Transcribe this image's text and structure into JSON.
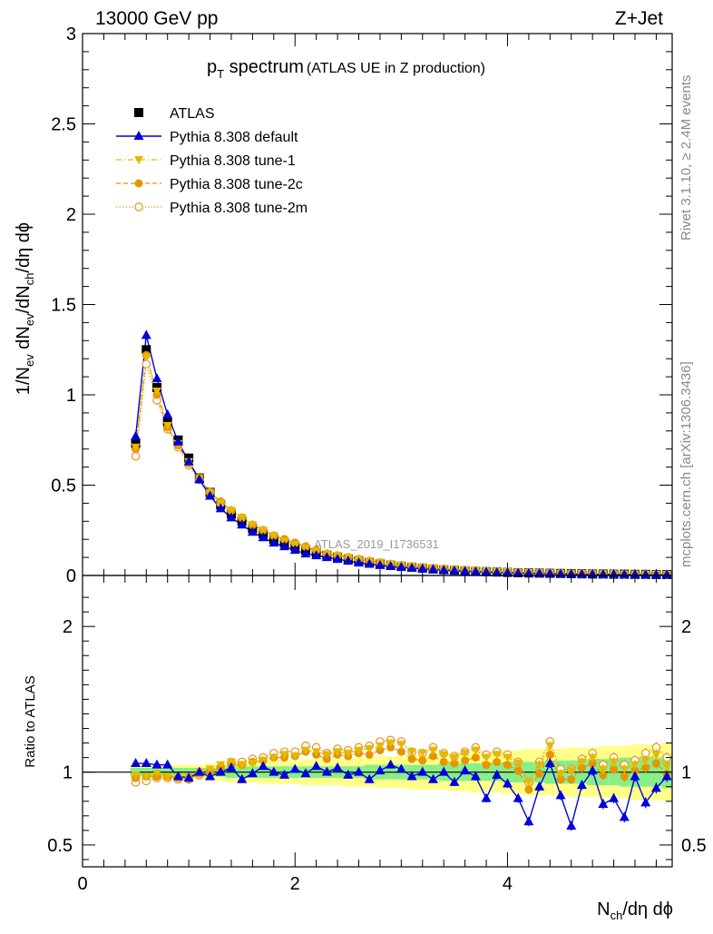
{
  "header": {
    "left": "13000 GeV pp",
    "right": "Z+Jet"
  },
  "plot_title": {
    "main_p": "p",
    "main_sub": "T",
    "main_rest": " spectrum",
    "paren": "(ATLAS UE in Z production)"
  },
  "sidebar": {
    "rivet": "Rivet 3.1.10, ≥ 2.4M events",
    "mcplots": "mcplots.cern.ch [arXiv:1306.3436]"
  },
  "watermark": "ATLAS_2019_I1736531",
  "colors": {
    "data": "#000000",
    "default": "#0000dd",
    "tune1": "#e6b800",
    "tune2c": "#e69500",
    "tune2m": "#e69b33",
    "band_yellow": "#ffff88",
    "band_green": "#88ee88"
  },
  "chart_data": [
    {
      "type": "scatter",
      "panel": "main",
      "ylabel": "1/N_ev dN_ev/dN_ch/dη dϕ",
      "ylabel_parts": {
        "a": "1/N",
        "a_sub": "ev",
        "b": " dN",
        "b_sub": "ev",
        "c": "/dN",
        "c_sub": "ch",
        "d": "/dη dϕ"
      },
      "ylim": [
        0,
        3
      ],
      "xlim": [
        0,
        5.55
      ],
      "yticks": [
        "0",
        "0.5",
        "1",
        "1.5",
        "2",
        "2.5",
        "3"
      ],
      "legend": [
        {
          "label": "ATLAS",
          "key": "data"
        },
        {
          "label": "Pythia 8.308 default",
          "key": "default"
        },
        {
          "label": "Pythia 8.308 tune-1",
          "key": "tune1"
        },
        {
          "label": "Pythia 8.308 tune-2c",
          "key": "tune2c"
        },
        {
          "label": "Pythia 8.308 tune-2m",
          "key": "tune2m"
        }
      ],
      "x": [
        0.5,
        0.6,
        0.7,
        0.8,
        0.9,
        1.0,
        1.1,
        1.2,
        1.3,
        1.4,
        1.5,
        1.6,
        1.7,
        1.8,
        1.9,
        2.0,
        2.1,
        2.2,
        2.3,
        2.4,
        2.5,
        2.6,
        2.7,
        2.8,
        2.9,
        3.0,
        3.1,
        3.2,
        3.3,
        3.4,
        3.5,
        3.6,
        3.7,
        3.8,
        3.9,
        4.0,
        4.1,
        4.2,
        4.3,
        4.4,
        4.5,
        4.6,
        4.7,
        4.8,
        4.9,
        5.0,
        5.1,
        5.2,
        5.3,
        5.4,
        5.5
      ],
      "series": [
        {
          "name": "ATLAS",
          "key": "data",
          "values": [
            0.73,
            1.25,
            1.04,
            0.85,
            0.75,
            0.65,
            0.54,
            0.46,
            0.39,
            0.34,
            0.3,
            0.26,
            0.23,
            0.2,
            0.18,
            0.16,
            0.14,
            0.125,
            0.11,
            0.1,
            0.09,
            0.08,
            0.072,
            0.064,
            0.057,
            0.051,
            0.046,
            0.041,
            0.036,
            0.032,
            0.029,
            0.026,
            0.023,
            0.021,
            0.019,
            0.017,
            0.015,
            0.014,
            0.013,
            0.012,
            0.011,
            0.01,
            0.009,
            0.008,
            0.008,
            0.007,
            0.007,
            0.006,
            0.006,
            0.005,
            0.005
          ]
        },
        {
          "name": "Pythia 8.308 default",
          "key": "default",
          "values": [
            0.77,
            1.33,
            1.09,
            0.89,
            0.74,
            0.63,
            0.53,
            0.44,
            0.37,
            0.32,
            0.28,
            0.24,
            0.21,
            0.18,
            0.16,
            0.14,
            0.12,
            0.11,
            0.1,
            0.09,
            0.08,
            0.07,
            0.063,
            0.056,
            0.05,
            0.045,
            0.041,
            0.037,
            0.033,
            0.029,
            0.026,
            0.023,
            0.021,
            0.018,
            0.016,
            0.015,
            0.013,
            0.012,
            0.011,
            0.01,
            0.009,
            0.008,
            0.007,
            0.007,
            0.006,
            0.006,
            0.005,
            0.005,
            0.004,
            0.004,
            0.004
          ]
        },
        {
          "name": "Pythia 8.308 tune-1",
          "key": "tune1",
          "values": [
            0.71,
            1.21,
            1.02,
            0.83,
            0.73,
            0.63,
            0.54,
            0.46,
            0.4,
            0.36,
            0.32,
            0.28,
            0.25,
            0.22,
            0.19,
            0.17,
            0.15,
            0.135,
            0.12,
            0.11,
            0.1,
            0.09,
            0.08,
            0.072,
            0.064,
            0.057,
            0.051,
            0.046,
            0.041,
            0.037,
            0.033,
            0.03,
            0.027,
            0.024,
            0.022,
            0.02,
            0.018,
            0.016,
            0.015,
            0.014,
            0.012,
            0.011,
            0.01,
            0.009,
            0.009,
            0.008,
            0.007,
            0.007,
            0.006,
            0.006,
            0.005
          ]
        },
        {
          "name": "Pythia 8.308 tune-2c",
          "key": "tune2c",
          "values": [
            0.7,
            1.22,
            1.0,
            0.82,
            0.72,
            0.62,
            0.54,
            0.46,
            0.41,
            0.36,
            0.32,
            0.28,
            0.25,
            0.22,
            0.2,
            0.18,
            0.16,
            0.14,
            0.12,
            0.11,
            0.1,
            0.09,
            0.08,
            0.071,
            0.063,
            0.056,
            0.05,
            0.045,
            0.04,
            0.036,
            0.032,
            0.029,
            0.026,
            0.023,
            0.021,
            0.019,
            0.017,
            0.015,
            0.014,
            0.013,
            0.012,
            0.011,
            0.01,
            0.009,
            0.008,
            0.008,
            0.007,
            0.006,
            0.006,
            0.005,
            0.005
          ]
        },
        {
          "name": "Pythia 8.308 tune-2m",
          "key": "tune2m",
          "values": [
            0.66,
            1.17,
            0.97,
            0.81,
            0.71,
            0.61,
            0.53,
            0.46,
            0.4,
            0.36,
            0.32,
            0.28,
            0.25,
            0.22,
            0.2,
            0.18,
            0.16,
            0.14,
            0.12,
            0.11,
            0.1,
            0.09,
            0.08,
            0.071,
            0.063,
            0.056,
            0.05,
            0.045,
            0.04,
            0.036,
            0.032,
            0.029,
            0.026,
            0.023,
            0.021,
            0.019,
            0.017,
            0.015,
            0.014,
            0.013,
            0.012,
            0.011,
            0.01,
            0.009,
            0.008,
            0.008,
            0.007,
            0.006,
            0.006,
            0.005,
            0.005
          ]
        }
      ]
    },
    {
      "type": "scatter",
      "panel": "ratio",
      "ylabel": "Ratio to ATLAS",
      "xlabel": "N_ch/dη dϕ",
      "xlabel_parts": {
        "a": "N",
        "a_sub": "ch",
        "b": "/dη dϕ"
      },
      "xlim": [
        0,
        5.55
      ],
      "ylim": [
        0.35,
        2.35
      ],
      "xticks": [
        "0",
        "2",
        "4"
      ],
      "yticks": [
        "0.5",
        "1",
        "2"
      ],
      "x": [
        0.5,
        0.6,
        0.7,
        0.8,
        0.9,
        1.0,
        1.1,
        1.2,
        1.3,
        1.4,
        1.5,
        1.6,
        1.7,
        1.8,
        1.9,
        2.0,
        2.1,
        2.2,
        2.3,
        2.4,
        2.5,
        2.6,
        2.7,
        2.8,
        2.9,
        3.0,
        3.1,
        3.2,
        3.3,
        3.4,
        3.5,
        3.6,
        3.7,
        3.8,
        3.9,
        4.0,
        4.1,
        4.2,
        4.3,
        4.4,
        4.5,
        4.6,
        4.7,
        4.8,
        4.9,
        5.0,
        5.1,
        5.2,
        5.3,
        5.4,
        5.5
      ],
      "band_green": [
        0.03,
        0.03,
        0.03,
        0.03,
        0.03,
        0.03,
        0.03,
        0.03,
        0.03,
        0.04,
        0.04,
        0.04,
        0.04,
        0.04,
        0.04,
        0.04,
        0.04,
        0.04,
        0.04,
        0.04,
        0.04,
        0.04,
        0.05,
        0.05,
        0.05,
        0.05,
        0.05,
        0.05,
        0.05,
        0.06,
        0.06,
        0.06,
        0.06,
        0.06,
        0.06,
        0.07,
        0.07,
        0.07,
        0.07,
        0.08,
        0.08,
        0.08,
        0.08,
        0.09,
        0.09,
        0.09,
        0.1,
        0.1,
        0.1,
        0.1,
        0.11
      ],
      "band_yellow": [
        0.05,
        0.05,
        0.05,
        0.05,
        0.05,
        0.05,
        0.05,
        0.06,
        0.06,
        0.07,
        0.07,
        0.07,
        0.08,
        0.08,
        0.08,
        0.08,
        0.09,
        0.09,
        0.09,
        0.09,
        0.1,
        0.1,
        0.1,
        0.11,
        0.11,
        0.11,
        0.12,
        0.12,
        0.12,
        0.12,
        0.13,
        0.13,
        0.14,
        0.14,
        0.14,
        0.15,
        0.15,
        0.16,
        0.16,
        0.16,
        0.16,
        0.17,
        0.17,
        0.17,
        0.18,
        0.18,
        0.18,
        0.19,
        0.19,
        0.19,
        0.2
      ],
      "series": [
        {
          "name": "Pythia 8.308 default",
          "key": "default",
          "values": [
            1.06,
            1.06,
            1.05,
            1.05,
            0.97,
            0.96,
            1.0,
            0.97,
            1.0,
            1.03,
            0.95,
            0.99,
            1.04,
            1.0,
            0.98,
            1.02,
            0.99,
            1.04,
            1.0,
            1.03,
            0.98,
            1.0,
            0.95,
            1.01,
            1.05,
            1.02,
            0.97,
            1.0,
            0.95,
            1.0,
            0.93,
            1.01,
            0.97,
            0.82,
            0.98,
            0.92,
            0.82,
            0.66,
            0.9,
            1.06,
            0.84,
            0.63,
            0.91,
            1.01,
            0.78,
            0.82,
            0.69,
            0.97,
            0.79,
            0.89,
            0.97
          ]
        },
        {
          "name": "Pythia 8.308 tune-1",
          "key": "tune1",
          "values": [
            0.98,
            0.97,
            0.99,
            0.97,
            0.97,
            0.97,
            1.0,
            1.02,
            1.05,
            1.07,
            1.05,
            1.06,
            1.08,
            1.1,
            1.12,
            1.11,
            1.15,
            1.14,
            1.12,
            1.14,
            1.13,
            1.15,
            1.16,
            1.18,
            1.2,
            1.19,
            1.14,
            1.13,
            1.15,
            1.12,
            1.1,
            1.13,
            1.15,
            1.1,
            1.12,
            1.1,
            1.06,
            0.93,
            1.05,
            1.18,
            0.99,
            1.01,
            1.07,
            1.1,
            1.02,
            1.07,
            1.02,
            1.05,
            1.08,
            1.12,
            1.04
          ]
        },
        {
          "name": "Pythia 8.308 tune-2c",
          "key": "tune2c",
          "values": [
            0.96,
            0.97,
            0.97,
            0.97,
            0.96,
            0.95,
            0.99,
            1.0,
            1.03,
            1.05,
            1.05,
            1.07,
            1.08,
            1.1,
            1.1,
            1.11,
            1.14,
            1.12,
            1.09,
            1.12,
            1.11,
            1.13,
            1.12,
            1.15,
            1.17,
            1.14,
            1.09,
            1.08,
            1.11,
            1.07,
            1.06,
            1.08,
            1.1,
            1.05,
            1.07,
            1.05,
            1.01,
            0.88,
            0.99,
            1.12,
            0.95,
            0.95,
            1.03,
            1.06,
            0.98,
            1.02,
            0.97,
            1.01,
            1.03,
            1.06,
            0.99
          ]
        },
        {
          "name": "Pythia 8.308 tune-2m",
          "key": "tune2m",
          "values": [
            0.93,
            0.94,
            0.96,
            0.96,
            0.95,
            0.95,
            0.98,
            1.0,
            1.03,
            1.07,
            1.07,
            1.09,
            1.1,
            1.13,
            1.14,
            1.14,
            1.18,
            1.17,
            1.13,
            1.16,
            1.15,
            1.17,
            1.18,
            1.21,
            1.22,
            1.21,
            1.14,
            1.13,
            1.17,
            1.13,
            1.11,
            1.14,
            1.17,
            1.12,
            1.14,
            1.12,
            1.07,
            0.93,
            1.07,
            1.21,
            1.02,
            1.02,
            1.09,
            1.13,
            1.05,
            1.1,
            1.05,
            1.08,
            1.13,
            1.17,
            1.1
          ]
        }
      ]
    }
  ]
}
